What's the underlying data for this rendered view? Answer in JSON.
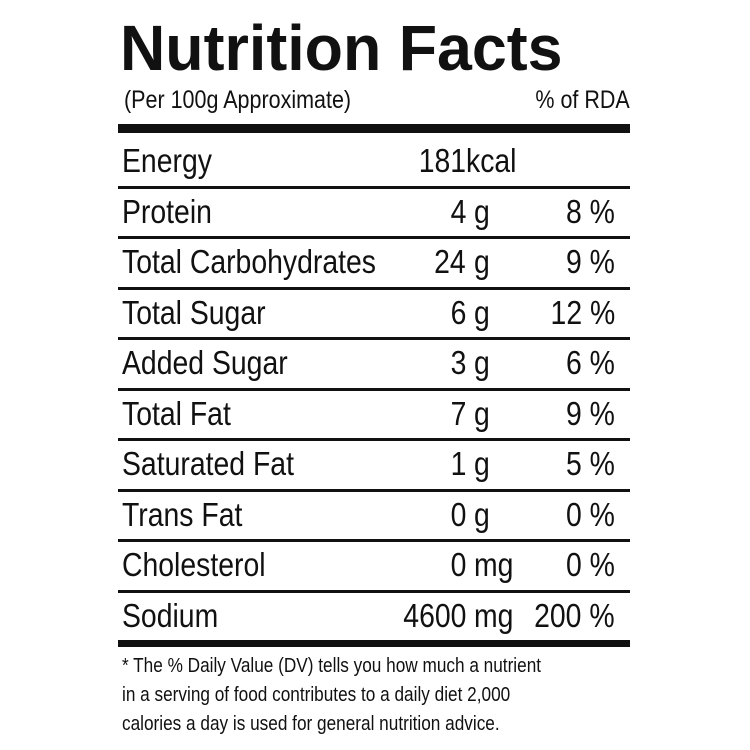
{
  "header": {
    "title": "Nutrition Facts",
    "basis": "(Per 100g Approximate)",
    "rda_label": "% of RDA"
  },
  "table": {
    "rows": [
      {
        "name": "Energy",
        "amount": "181",
        "unit": "kcal"
      },
      {
        "name": "Protein",
        "amount": "4",
        "unit": "g",
        "rda": "8 %"
      },
      {
        "name": "Total Carbohydrates",
        "amount": "24",
        "unit": "g",
        "rda": "9 %"
      },
      {
        "name": "Total Sugar",
        "amount": "6",
        "unit": "g",
        "rda": "12 %"
      },
      {
        "name": "Added Sugar",
        "amount": "3",
        "unit": "g",
        "rda": "6 %"
      },
      {
        "name": "Total Fat",
        "amount": "7",
        "unit": "g",
        "rda": "9 %"
      },
      {
        "name": "Saturated Fat",
        "amount": "1",
        "unit": "g",
        "rda": "5 %"
      },
      {
        "name": "Trans Fat",
        "amount": "0",
        "unit": "g",
        "rda": "0 %"
      },
      {
        "name": "Cholesterol",
        "amount": "0",
        "unit": "mg",
        "rda": "0 %"
      },
      {
        "name": "Sodium",
        "amount": "4600",
        "unit": "mg",
        "rda": "200 %"
      }
    ]
  },
  "footnote": {
    "lines": [
      "* The % Daily Value (DV) tells you how much a nutrient",
      "in a serving of food contributes to a daily diet 2,000",
      "calories a day is used for general nutrition advice."
    ]
  }
}
